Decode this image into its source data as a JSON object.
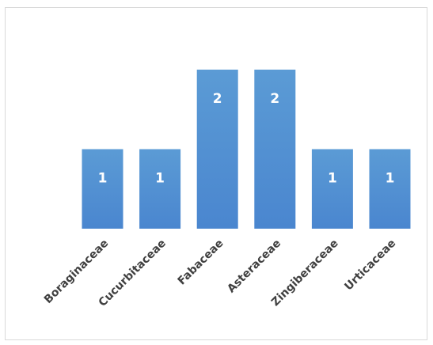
{
  "chart_data": {
    "type": "bar",
    "categories": [
      "Boraginaceae",
      "Cucurbitaceae",
      "Fabaceae",
      "Asteraceae",
      "Zingiberaceae",
      "Urticaceae"
    ],
    "values": [
      1,
      1,
      2,
      2,
      1,
      1
    ],
    "title": "",
    "xlabel": "",
    "ylabel": "",
    "ylim": [
      0,
      2
    ],
    "grid": false,
    "legend": "none",
    "data_labels": true,
    "bar_color": "#4a86cf",
    "bar_color_light": "#5b9bd5",
    "label_color": "#ffffff",
    "category_label_color": "#404040"
  }
}
